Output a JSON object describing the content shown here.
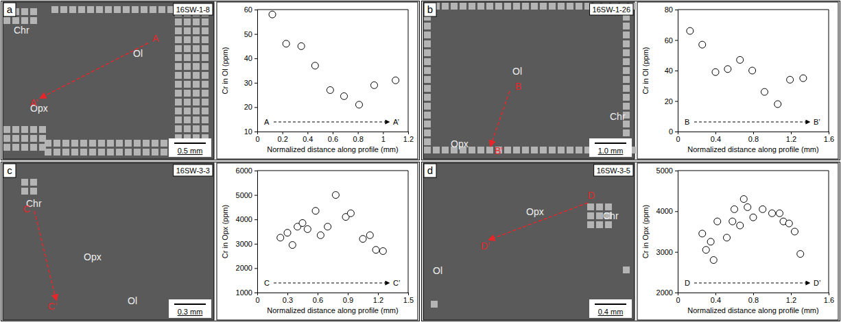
{
  "chart_data": [
    {
      "type": "scatter",
      "xlabel": "Normalized distance along profile (mm)",
      "ylabel": "Cr in Ol (ppm)",
      "x": [
        0.12,
        0.23,
        0.35,
        0.46,
        0.58,
        0.69,
        0.81,
        0.93,
        1.1
      ],
      "values": [
        58,
        46,
        45,
        37,
        27,
        24.5,
        21,
        29,
        31
      ],
      "xlim": [
        0,
        1.2
      ],
      "xticks": [
        0,
        0.2,
        0.4,
        0.6,
        0.8,
        1,
        1.2
      ],
      "ylim": [
        10,
        60
      ],
      "yticks": [
        10,
        20,
        30,
        40,
        50,
        60
      ],
      "marker": "circle-open",
      "color": "#000000",
      "annotations": [
        "A",
        "A’"
      ]
    },
    {
      "type": "scatter",
      "xlabel": "Normalized distance along profile (mm)",
      "ylabel": "Cr in Ol (ppm)",
      "x": [
        0.13,
        0.26,
        0.4,
        0.53,
        0.66,
        0.79,
        0.92,
        1.06,
        1.19,
        1.33
      ],
      "values": [
        66,
        57,
        39,
        41,
        47,
        40,
        26,
        18,
        34,
        35
      ],
      "xlim": [
        0,
        1.6
      ],
      "xticks": [
        0,
        0.4,
        0.8,
        1.2,
        1.6
      ],
      "ylim": [
        0,
        80
      ],
      "yticks": [
        0,
        20,
        40,
        60,
        80
      ],
      "marker": "circle-open",
      "color": "#000000",
      "annotations": [
        "B",
        "B’"
      ]
    },
    {
      "type": "scatter",
      "xlabel": "Normalized distance along profile (mm)",
      "ylabel": "Cr in Opx (ppm)",
      "x": [
        0.23,
        0.3,
        0.35,
        0.4,
        0.45,
        0.5,
        0.58,
        0.63,
        0.7,
        0.78,
        0.88,
        0.93,
        1.05,
        1.12,
        1.18,
        1.25
      ],
      "values": [
        3250,
        3450,
        2950,
        3700,
        3850,
        3600,
        4350,
        3350,
        3700,
        5000,
        4100,
        4250,
        3200,
        3350,
        2750,
        2700
      ],
      "xlim": [
        0,
        1.5
      ],
      "xticks": [
        0,
        0.3,
        0.6,
        0.9,
        1.2,
        1.5
      ],
      "ylim": [
        1000,
        6000
      ],
      "yticks": [
        1000,
        2000,
        3000,
        4000,
        5000,
        6000
      ],
      "marker": "circle-open",
      "color": "#000000",
      "annotations": [
        "C",
        "C’"
      ]
    },
    {
      "type": "scatter",
      "xlabel": "Normalized distance along profile (mm)",
      "ylabel": "Cr in Opx (ppm)",
      "x": [
        0.26,
        0.3,
        0.35,
        0.38,
        0.42,
        0.52,
        0.58,
        0.6,
        0.66,
        0.7,
        0.74,
        0.8,
        0.9,
        1.0,
        1.08,
        1.12,
        1.18,
        1.24,
        1.3
      ],
      "values": [
        3450,
        3050,
        3250,
        2800,
        3750,
        3350,
        3750,
        4050,
        3650,
        4300,
        4100,
        3850,
        4050,
        3950,
        3950,
        3750,
        3700,
        3500,
        2950
      ],
      "xlim": [
        0,
        1.6
      ],
      "xticks": [
        0,
        0.4,
        0.8,
        1.2,
        1.6
      ],
      "ylim": [
        2000,
        5000
      ],
      "yticks": [
        2000,
        3000,
        4000,
        5000
      ],
      "marker": "circle-open",
      "color": "#000000",
      "annotations": [
        "D",
        "D’"
      ]
    }
  ],
  "images": [
    {
      "panel": "a",
      "sample": "16SW-1-8",
      "minerals": [
        "Chr",
        "Ol",
        "Opx"
      ],
      "profile": [
        "A",
        "A’"
      ],
      "scale_bar": "0.5 mm"
    },
    {
      "panel": "b",
      "sample": "16SW-1-26",
      "minerals": [
        "Ol",
        "Opx",
        "Chr"
      ],
      "profile": [
        "B",
        "B’"
      ],
      "scale_bar": "1.0 mm"
    },
    {
      "panel": "c",
      "sample": "16SW-3-3",
      "minerals": [
        "Chr",
        "Opx",
        "Ol"
      ],
      "profile": [
        "C",
        "C’"
      ],
      "scale_bar": "0.3 mm"
    },
    {
      "panel": "d",
      "sample": "16SW-3-5",
      "minerals": [
        "Opx",
        "Ol",
        "Chr"
      ],
      "profile": [
        "D",
        "D’"
      ],
      "scale_bar": "0.4 mm"
    }
  ]
}
